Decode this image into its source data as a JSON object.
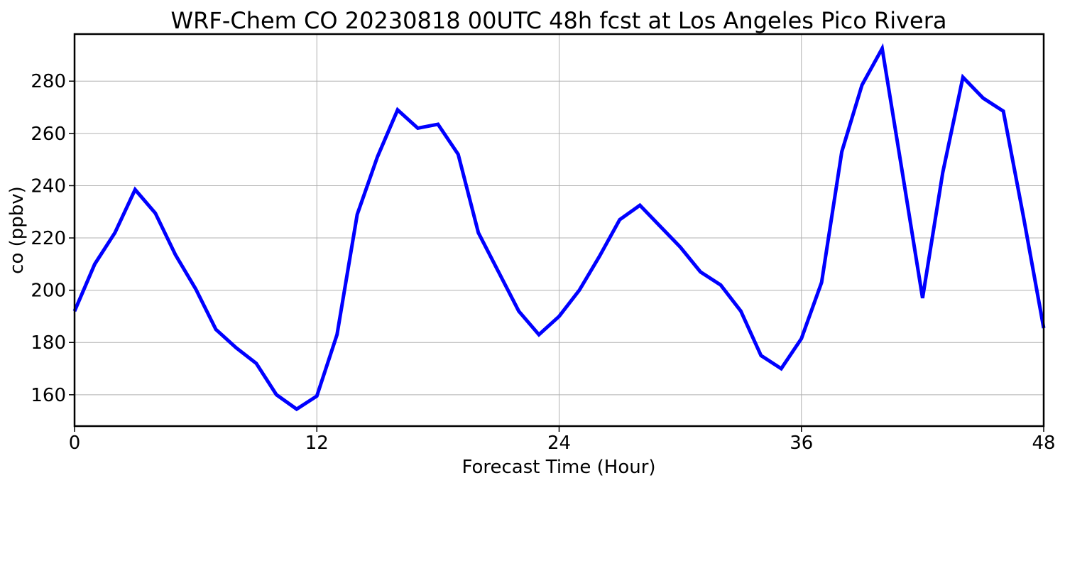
{
  "chart_data": {
    "type": "line",
    "title": "WRF-Chem CO  20230818 00UTC 48h fcst at Los Angeles Pico Rivera",
    "xlabel": "Forecast Time (Hour)",
    "ylabel": "co  (ppbv)",
    "xlim": [
      0,
      48
    ],
    "ylim": [
      148,
      298
    ],
    "xticks": [
      0,
      12,
      24,
      36,
      48
    ],
    "yticks": [
      160,
      180,
      200,
      220,
      240,
      260,
      280
    ],
    "grid": true,
    "series": [
      {
        "color": "#0000ff",
        "x": [
          0,
          1,
          2,
          3,
          4,
          5,
          6,
          7,
          8,
          9,
          10,
          11,
          12,
          13,
          14,
          15,
          16,
          17,
          18,
          19,
          20,
          21,
          22,
          23,
          24,
          25,
          26,
          27,
          28,
          29,
          30,
          31,
          32,
          33,
          34,
          35,
          36,
          37,
          38,
          39,
          40,
          41,
          42,
          43,
          44,
          45,
          46,
          47,
          48
        ],
        "values": [
          192,
          210,
          222,
          238.5,
          229.5,
          213.5,
          200.5,
          185,
          178,
          172,
          160,
          154.5,
          159.5,
          183,
          229,
          251,
          269,
          262,
          263.5,
          252,
          222,
          207,
          192,
          183,
          190,
          200,
          213,
          227,
          232.5,
          224.5,
          216.5,
          207,
          202,
          192,
          175,
          170,
          181.5,
          203,
          253,
          278.5,
          292.5,
          245,
          197,
          245,
          281.5,
          273.5,
          268.5,
          228,
          185.5
        ]
      }
    ]
  }
}
